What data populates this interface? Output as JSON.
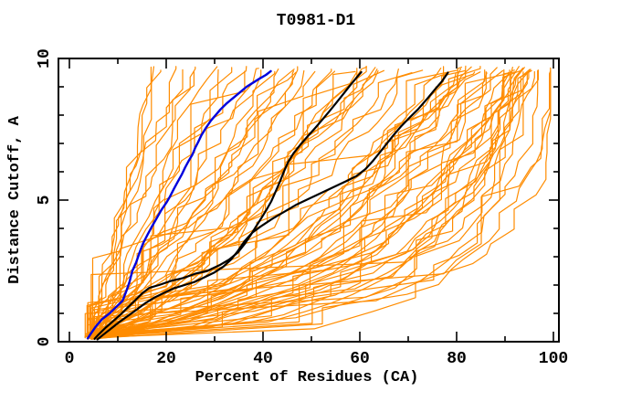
{
  "figure": {
    "title": "T0981-D1",
    "background": "#ffffff"
  },
  "chart_data": {
    "type": "line",
    "title": "T0981-D1",
    "xlabel": "Percent of Residues (CA)",
    "ylabel": "Distance Cutoff, A",
    "xlim": [
      -2.3,
      101.1
    ],
    "ylim": [
      0,
      10
    ],
    "grid": false,
    "legend": "none",
    "frame": "box-with-inward-ticks",
    "x_major_ticks": [
      0,
      20,
      40,
      60,
      80,
      100
    ],
    "x_minor_ticks": [
      10,
      30,
      50,
      70,
      90
    ],
    "x_tick_labels": [
      "0",
      "20",
      "40",
      "60",
      "80",
      "100"
    ],
    "y_major_ticks": [
      0,
      5,
      10
    ],
    "y_minor_ticks": [
      1,
      2,
      3,
      4,
      6,
      7,
      8,
      9
    ],
    "y_tick_labels": [
      "0",
      "5",
      "10"
    ],
    "colors": {
      "ensemble": "#ff8c00",
      "highlight": "#0000dd",
      "reference": "#000000",
      "frame": "#000000"
    },
    "series": [
      {
        "name": "highlight-model-blue",
        "color": "#0000dd",
        "width": 2.4,
        "points": [
          [
            3.8,
            0.12
          ],
          [
            4.5,
            0.3
          ],
          [
            5.5,
            0.55
          ],
          [
            6.8,
            0.8
          ],
          [
            8.3,
            1.0
          ],
          [
            9.8,
            1.25
          ],
          [
            11.0,
            1.45
          ],
          [
            11.8,
            1.8
          ],
          [
            12.4,
            2.1
          ],
          [
            13.0,
            2.5
          ],
          [
            13.8,
            2.8
          ],
          [
            14.6,
            3.2
          ],
          [
            15.3,
            3.5
          ],
          [
            16.2,
            3.8
          ],
          [
            17.0,
            4.05
          ],
          [
            18.0,
            4.35
          ],
          [
            19.0,
            4.65
          ],
          [
            20.0,
            4.9
          ],
          [
            20.7,
            5.1
          ],
          [
            21.6,
            5.4
          ],
          [
            22.4,
            5.65
          ],
          [
            23.2,
            5.9
          ],
          [
            23.9,
            6.15
          ],
          [
            24.7,
            6.4
          ],
          [
            25.4,
            6.6
          ],
          [
            26.0,
            6.85
          ],
          [
            26.6,
            7.05
          ],
          [
            27.3,
            7.3
          ],
          [
            28.2,
            7.55
          ],
          [
            29.2,
            7.8
          ],
          [
            30.2,
            8.0
          ],
          [
            31.2,
            8.2
          ],
          [
            32.4,
            8.4
          ],
          [
            33.8,
            8.6
          ],
          [
            35.2,
            8.8
          ],
          [
            36.6,
            9.0
          ],
          [
            38.0,
            9.15
          ],
          [
            39.4,
            9.3
          ],
          [
            40.6,
            9.42
          ],
          [
            41.6,
            9.55
          ]
        ]
      },
      {
        "name": "reference-model-black-1",
        "color": "#000000",
        "width": 2.2,
        "points": [
          [
            5.2,
            0.1
          ],
          [
            6.0,
            0.25
          ],
          [
            7.5,
            0.5
          ],
          [
            9.0,
            0.72
          ],
          [
            10.5,
            0.95
          ],
          [
            12.0,
            1.2
          ],
          [
            13.5,
            1.45
          ],
          [
            15.0,
            1.7
          ],
          [
            16.5,
            1.9
          ],
          [
            18.5,
            2.0
          ],
          [
            21.0,
            2.15
          ],
          [
            23.5,
            2.25
          ],
          [
            26.0,
            2.4
          ],
          [
            28.5,
            2.5
          ],
          [
            31.0,
            2.7
          ],
          [
            33.0,
            2.9
          ],
          [
            34.8,
            3.15
          ],
          [
            36.2,
            3.45
          ],
          [
            37.4,
            3.75
          ],
          [
            38.5,
            4.05
          ],
          [
            39.6,
            4.35
          ],
          [
            40.7,
            4.65
          ],
          [
            41.7,
            4.95
          ],
          [
            42.6,
            5.3
          ],
          [
            43.5,
            5.65
          ],
          [
            44.3,
            6.0
          ],
          [
            45.2,
            6.35
          ],
          [
            46.3,
            6.65
          ],
          [
            47.7,
            6.95
          ],
          [
            49.2,
            7.25
          ],
          [
            50.8,
            7.55
          ],
          [
            52.3,
            7.85
          ],
          [
            53.8,
            8.15
          ],
          [
            55.2,
            8.45
          ],
          [
            56.6,
            8.75
          ],
          [
            58.0,
            9.05
          ],
          [
            59.2,
            9.3
          ],
          [
            60.3,
            9.52
          ]
        ]
      },
      {
        "name": "reference-model-black-2",
        "color": "#000000",
        "width": 2.2,
        "points": [
          [
            5.8,
            0.08
          ],
          [
            7.0,
            0.25
          ],
          [
            8.5,
            0.45
          ],
          [
            10.2,
            0.68
          ],
          [
            12.0,
            0.9
          ],
          [
            13.8,
            1.12
          ],
          [
            15.6,
            1.35
          ],
          [
            17.5,
            1.55
          ],
          [
            19.5,
            1.72
          ],
          [
            21.5,
            1.88
          ],
          [
            23.8,
            2.0
          ],
          [
            26.0,
            2.12
          ],
          [
            28.0,
            2.28
          ],
          [
            30.0,
            2.45
          ],
          [
            31.8,
            2.65
          ],
          [
            33.4,
            2.9
          ],
          [
            34.8,
            3.2
          ],
          [
            36.2,
            3.55
          ],
          [
            37.8,
            3.85
          ],
          [
            39.8,
            4.1
          ],
          [
            42.0,
            4.35
          ],
          [
            44.5,
            4.6
          ],
          [
            47.0,
            4.85
          ],
          [
            49.5,
            5.05
          ],
          [
            52.0,
            5.25
          ],
          [
            54.5,
            5.45
          ],
          [
            57.0,
            5.65
          ],
          [
            59.3,
            5.85
          ],
          [
            61.2,
            6.1
          ],
          [
            62.8,
            6.4
          ],
          [
            64.2,
            6.7
          ],
          [
            65.6,
            7.0
          ],
          [
            67.0,
            7.3
          ],
          [
            68.5,
            7.6
          ],
          [
            70.2,
            7.9
          ],
          [
            72.0,
            8.2
          ],
          [
            73.8,
            8.55
          ],
          [
            75.5,
            8.9
          ],
          [
            77.0,
            9.2
          ],
          [
            78.2,
            9.5
          ]
        ]
      }
    ],
    "orange_ensemble": {
      "name": "server-model-curves",
      "color": "#ff8c00",
      "width": 1.2,
      "count": 78,
      "seed": 1337,
      "anchor_y": [
        0.3,
        1,
        2,
        3.5,
        5,
        7,
        9.5
      ],
      "profile_d": [
        0,
        0.25,
        0.5,
        0.75,
        1
      ],
      "profile_x": [
        [
          45,
          58,
          76,
          86,
          92.5,
          97,
          98.8
        ],
        [
          16,
          30,
          50,
          65,
          74,
          84,
          93
        ],
        [
          9,
          17,
          30,
          43,
          53,
          64,
          78
        ],
        [
          6.5,
          10.5,
          16.5,
          23.5,
          30.5,
          39,
          50
        ],
        [
          4.5,
          5.5,
          6.5,
          8,
          10.2,
          13.5,
          17
        ]
      ],
      "origin_x_range": [
        3.2,
        6.2
      ],
      "start_y_range": [
        0.08,
        0.28
      ],
      "end_y_range": [
        9.48,
        9.73
      ],
      "top_endpoint_x_range": [
        17,
        99.4
      ]
    }
  }
}
